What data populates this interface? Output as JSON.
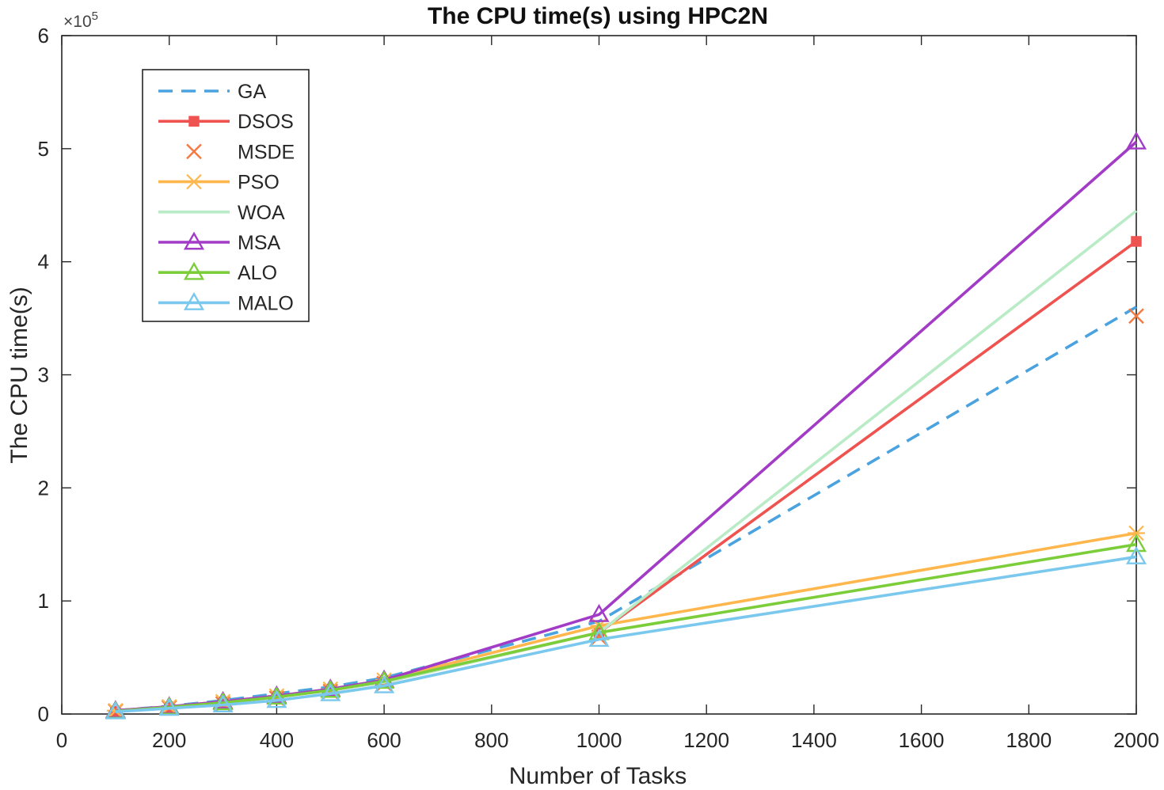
{
  "chart_data": {
    "type": "line",
    "title": "The CPU time(s) using HPC2N",
    "xlabel": "Number of Tasks",
    "ylabel": "The CPU time(s)",
    "y_multiplier": "×10",
    "y_multiplier_exp": "5",
    "xlim": [
      0,
      2000
    ],
    "ylim": [
      0,
      600000
    ],
    "xticks": [
      "0",
      "200",
      "400",
      "600",
      "800",
      "1000",
      "1200",
      "1400",
      "1600",
      "1800",
      "2000"
    ],
    "xtick_values": [
      0,
      200,
      400,
      600,
      800,
      1000,
      1200,
      1400,
      1600,
      1800,
      2000
    ],
    "yticks": [
      "0",
      "1",
      "2",
      "3",
      "4",
      "5",
      "6"
    ],
    "ytick_values": [
      0,
      100000,
      200000,
      300000,
      400000,
      500000,
      600000
    ],
    "grid": false,
    "legend_position": "top-left",
    "x": [
      100,
      200,
      300,
      400,
      500,
      600,
      1000,
      2000
    ],
    "series": [
      {
        "name": "GA",
        "color": "#4aa3df",
        "style": "dashed",
        "marker": "none",
        "values": [
          3000,
          7000,
          12000,
          18000,
          24000,
          32000,
          82000,
          360000
        ]
      },
      {
        "name": "DSOS",
        "color": "#ef5350",
        "style": "solid",
        "marker": "square",
        "values": [
          2500,
          6000,
          10000,
          15000,
          21000,
          28000,
          72000,
          418000
        ]
      },
      {
        "name": "MSDE",
        "color": "#f47a42",
        "style": "none",
        "marker": "x",
        "values": [
          2500,
          5500,
          9000,
          14000,
          20000,
          27000,
          68000,
          352000
        ]
      },
      {
        "name": "PSO",
        "color": "#ffb74d",
        "style": "solid",
        "marker": "asterisk",
        "values": [
          3000,
          6500,
          11000,
          16000,
          22000,
          30000,
          78000,
          160000
        ]
      },
      {
        "name": "WOA",
        "color": "#b9ecc6",
        "style": "solid",
        "marker": "none",
        "values": [
          2500,
          6000,
          10000,
          15000,
          21000,
          28000,
          72000,
          445000
        ]
      },
      {
        "name": "MSA",
        "color": "#a23cc6",
        "style": "solid",
        "marker": "triangle",
        "values": [
          3000,
          6500,
          11000,
          16000,
          22000,
          30000,
          88000,
          506000
        ]
      },
      {
        "name": "ALO",
        "color": "#7ccd3a",
        "style": "solid",
        "marker": "triangle",
        "values": [
          2500,
          6000,
          10000,
          15000,
          21000,
          29000,
          72000,
          150000
        ]
      },
      {
        "name": "MALO",
        "color": "#7ac8ee",
        "style": "solid",
        "marker": "triangle",
        "values": [
          2000,
          5000,
          8000,
          12000,
          18000,
          25000,
          66000,
          139000
        ]
      }
    ]
  }
}
